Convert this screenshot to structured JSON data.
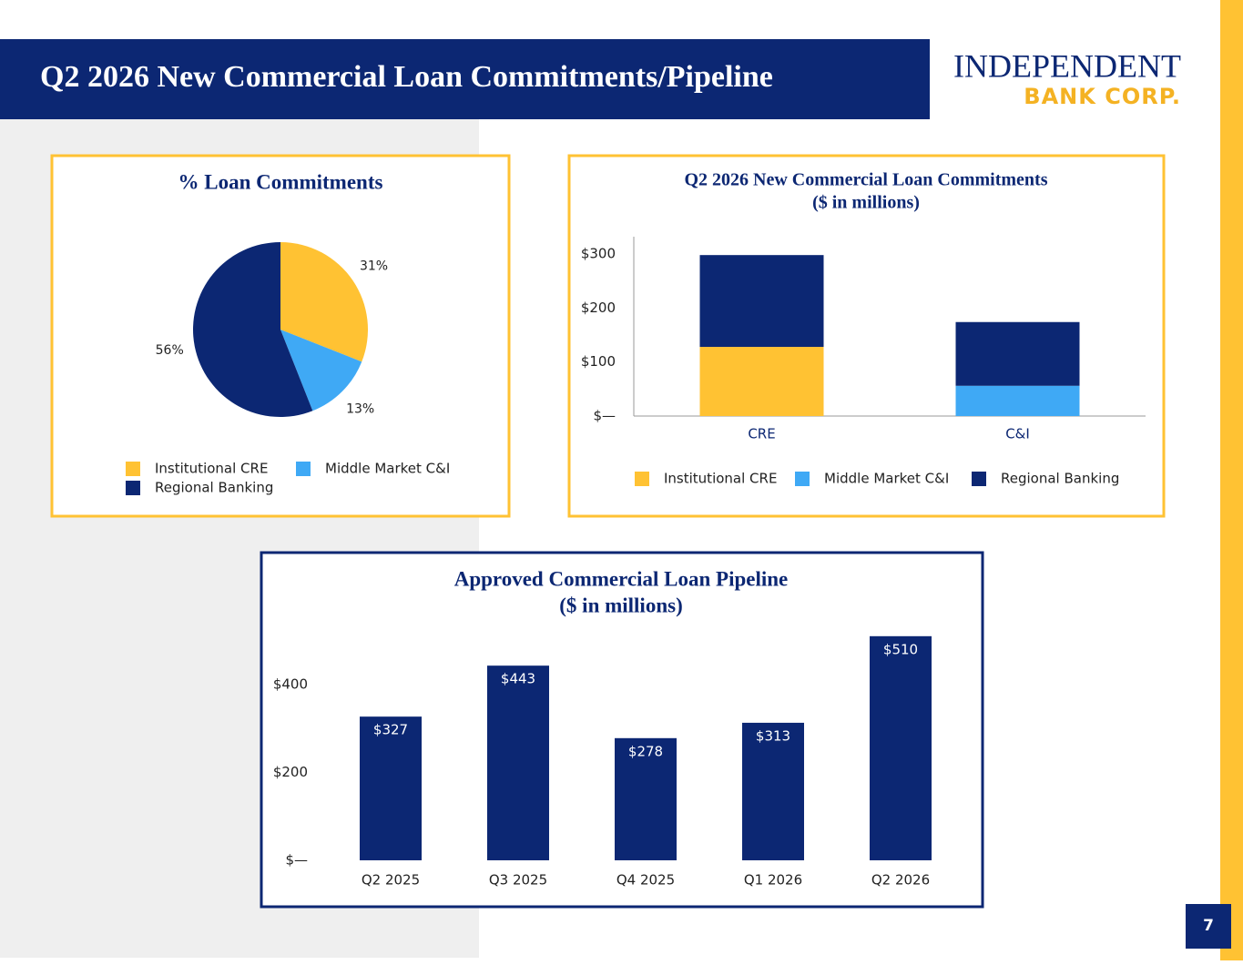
{
  "header": {
    "title": "Q2 2026 New Commercial Loan Commitments/Pipeline"
  },
  "logo": {
    "name": "INDEPENDENT",
    "sub": "BANK CORP."
  },
  "page_number": "7",
  "chart_data": [
    {
      "type": "pie",
      "title": "% Loan Commitments",
      "categories": [
        "Institutional CRE",
        "Middle Market C&I",
        "Regional Banking"
      ],
      "values": [
        31,
        13,
        56
      ],
      "value_labels": [
        "31%",
        "13%",
        "56%"
      ],
      "colors": [
        "#ffc233",
        "#3fa9f5",
        "#0c2773"
      ]
    },
    {
      "type": "bar",
      "stacked": true,
      "title": "Q2 2026 New Commercial Loan Commitments",
      "subtitle": "($ in millions)",
      "categories": [
        "CRE",
        "C&I"
      ],
      "series": [
        {
          "name": "Institutional CRE",
          "color": "#ffc233",
          "values": [
            128,
            0
          ]
        },
        {
          "name": "Middle Market C&I",
          "color": "#3fa9f5",
          "values": [
            0,
            56
          ]
        },
        {
          "name": "Regional Banking",
          "color": "#0c2773",
          "values": [
            170,
            118
          ]
        }
      ],
      "ylim": [
        0,
        332
      ],
      "yticks": [
        {
          "value": 0,
          "label": "$—"
        },
        {
          "value": 100,
          "label": "$100"
        },
        {
          "value": 200,
          "label": "$200"
        },
        {
          "value": 300,
          "label": "$300"
        }
      ]
    },
    {
      "type": "bar",
      "title": "Approved Commercial Loan Pipeline",
      "subtitle": "($ in millions)",
      "categories": [
        "Q2 2025",
        "Q3 2025",
        "Q4 2025",
        "Q1 2026",
        "Q2 2026"
      ],
      "values": [
        327,
        443,
        278,
        313,
        510
      ],
      "value_labels": [
        "$327",
        "$443",
        "$278",
        "$313",
        "$510"
      ],
      "color": "#0c2773",
      "ylim": [
        0,
        520
      ],
      "yticks": [
        {
          "value": 0,
          "label": "$—"
        },
        {
          "value": 200,
          "label": "$200"
        },
        {
          "value": 400,
          "label": "$400"
        }
      ]
    }
  ]
}
